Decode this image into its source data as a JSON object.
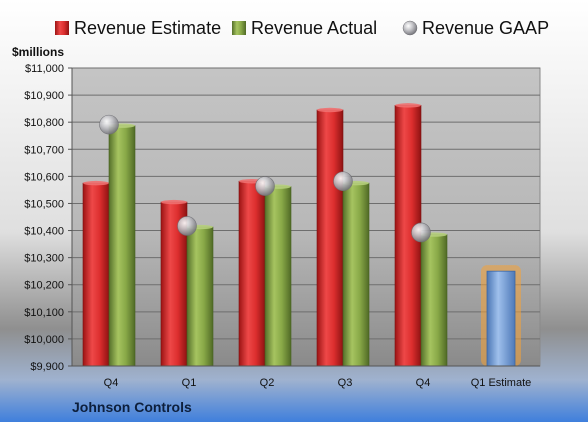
{
  "chart_data": {
    "type": "bar",
    "company": "Johnson Controls",
    "unit_label": "$millions",
    "categories": [
      "Q4",
      "Q1",
      "Q2",
      "Q3",
      "Q4",
      "Q1 Estimate"
    ],
    "ylim": [
      9900,
      11000
    ],
    "yticks": [
      9900,
      10000,
      10100,
      10200,
      10300,
      10400,
      10500,
      10600,
      10700,
      10800,
      10900,
      11000
    ],
    "ytick_labels": [
      "$9,900",
      "$10,000",
      "$10,100",
      "$10,200",
      "$10,300",
      "$10,400",
      "$10,500",
      "$10,600",
      "$10,700",
      "$10,800",
      "$10,900",
      "$11,000"
    ],
    "grid": true,
    "legend_position": "top",
    "series": [
      {
        "name": "Revenue Estimate",
        "kind": "bar",
        "color": "#d42a2a",
        "values": [
          10575,
          10505,
          10582,
          10845,
          10862,
          null
        ]
      },
      {
        "name": "Revenue Actual",
        "kind": "bar",
        "color": "#7e9c3c",
        "values": [
          10787,
          10413,
          10562,
          10575,
          10385,
          null
        ]
      },
      {
        "name": "Revenue GAAP",
        "kind": "marker",
        "color": "#b4b4b8",
        "values": [
          10791,
          10417,
          10564,
          10582,
          10393,
          null
        ]
      }
    ],
    "forecast": {
      "category": "Q1 Estimate",
      "value": 10250,
      "color": "#6d9ad6",
      "glow_color": "#f5a236"
    }
  }
}
